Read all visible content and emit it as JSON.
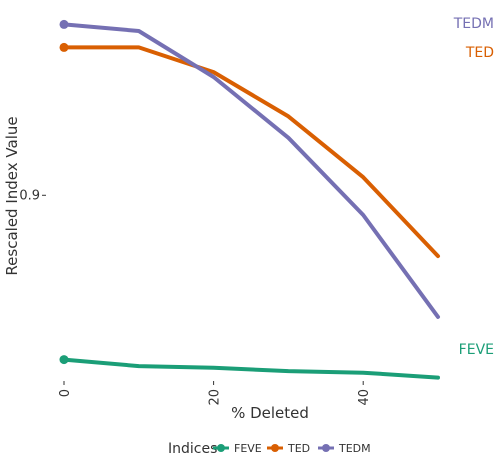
{
  "chart_data": {
    "type": "line",
    "title": "",
    "xlabel": "% Deleted",
    "ylabel": "Rescaled Index Value",
    "x": [
      0,
      10,
      20,
      30,
      40,
      50
    ],
    "xlim": [
      0,
      50
    ],
    "ylim": [
      0.79,
      1.014
    ],
    "x_ticks": [
      0,
      20,
      40
    ],
    "x_tick_labels": [
      "0",
      "20",
      "40"
    ],
    "y_ticks": [
      0.9
    ],
    "y_tick_labels": [
      "0.9"
    ],
    "grid": false,
    "legend_placement": "bottom",
    "legend_title": "Indices",
    "series": [
      {
        "name": "FEVE",
        "color": "#1b9e77",
        "values": [
          0.8,
          0.796,
          0.795,
          0.793,
          0.792,
          0.789
        ]
      },
      {
        "name": "TED",
        "color": "#d95f02",
        "values": [
          0.99,
          0.99,
          0.975,
          0.948,
          0.911,
          0.863
        ]
      },
      {
        "name": "TEDM",
        "color": "#7570b3",
        "values": [
          1.004,
          1.0,
          0.972,
          0.935,
          0.888,
          0.826
        ]
      }
    ]
  }
}
